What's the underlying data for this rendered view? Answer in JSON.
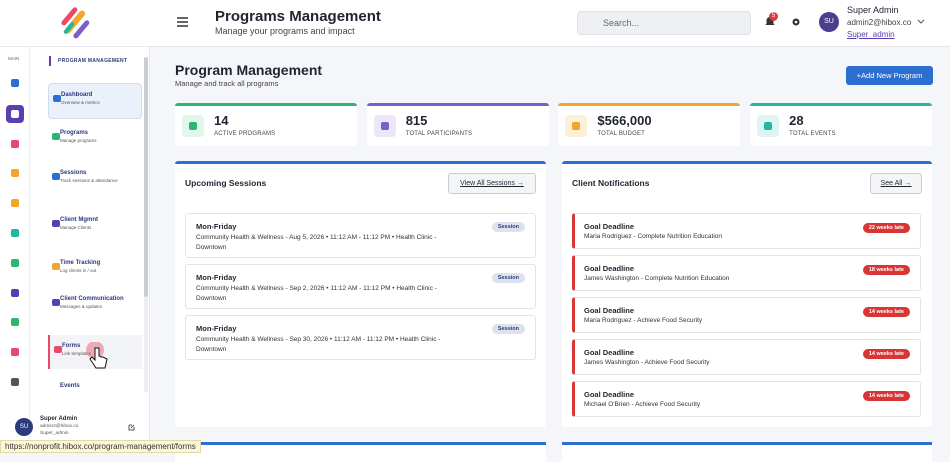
{
  "header": {
    "title": "Programs Management",
    "subtitle": "Manage your programs and impact",
    "search_placeholder": "Search...",
    "notification_count": "5",
    "user": {
      "initials": "SU",
      "name": "Super Admin",
      "email": "admin2@hibox.co",
      "role": "Super_admin"
    }
  },
  "sidebar": {
    "rail_label": "MAIN",
    "section": "PROGRAM MANAGEMENT",
    "items": [
      {
        "title": "Dashboard",
        "desc": "Overview & metrics"
      },
      {
        "title": "Programs",
        "desc": "Manage programs"
      },
      {
        "title": "Sessions",
        "desc": "Track sessions & attendance"
      },
      {
        "title": "Client Mgmnt",
        "desc": "Manage Clients"
      },
      {
        "title": "Time Tracking",
        "desc": "Log clients in / out"
      },
      {
        "title": "Client Communication",
        "desc": "Messages & updates"
      },
      {
        "title": "Forms",
        "desc": "Link templates"
      },
      {
        "title": "Events"
      }
    ],
    "footer": {
      "initials": "SU",
      "name": "Super Admin",
      "email": "admin2@hibox.co",
      "role": "Super_admin"
    }
  },
  "page": {
    "title": "Program Management",
    "subtitle": "Manage and track all programs",
    "add_button": "+Add New Program"
  },
  "stats": [
    {
      "value": "14",
      "label": "ACTIVE PROGRAMS"
    },
    {
      "value": "815",
      "label": "TOTAL PARTICIPANTS"
    },
    {
      "value": "$566,000",
      "label": "TOTAL BUDGET"
    },
    {
      "value": "28",
      "label": "TOTAL EVENTS"
    }
  ],
  "sessions": {
    "title": "Upcoming Sessions",
    "button": "View All Sessions →",
    "items": [
      {
        "title": "Mon-Friday",
        "detail": "Community Health & Wellness - Aug 5, 2026 • 11:12 AM - 11:12 PM • Health Clinic - Downtown",
        "badge": "Session"
      },
      {
        "title": "Mon-Friday",
        "detail": "Community Health & Wellness - Sep 2, 2026 • 11:12 AM - 11:12 PM • Health Clinic - Downtown",
        "badge": "Session"
      },
      {
        "title": "Mon-Friday",
        "detail": "Community Health & Wellness - Sep 30, 2026 • 11:12 AM - 11:12 PM • Health Clinic - Downtown",
        "badge": "Session"
      }
    ]
  },
  "notifications": {
    "title": "Client Notifications",
    "button": "See All →",
    "items": [
      {
        "title": "Goal Deadline",
        "detail": "Maria Rodriguez - Complete Nutrition Education",
        "badge": "22 weeks late"
      },
      {
        "title": "Goal Deadline",
        "detail": "James Washington - Complete Nutrition Education",
        "badge": "18 weeks late"
      },
      {
        "title": "Goal Deadline",
        "detail": "Maria Rodriguez - Achieve Food Security",
        "badge": "14 weeks late"
      },
      {
        "title": "Goal Deadline",
        "detail": "James Washington - Achieve Food Security",
        "badge": "14 weeks late"
      },
      {
        "title": "Goal Deadline",
        "detail": "Michael O'Brien - Achieve Food Security",
        "badge": "14 weeks late"
      }
    ]
  },
  "status_url": "https://nonprofit.hibox.co/program-management/forms"
}
